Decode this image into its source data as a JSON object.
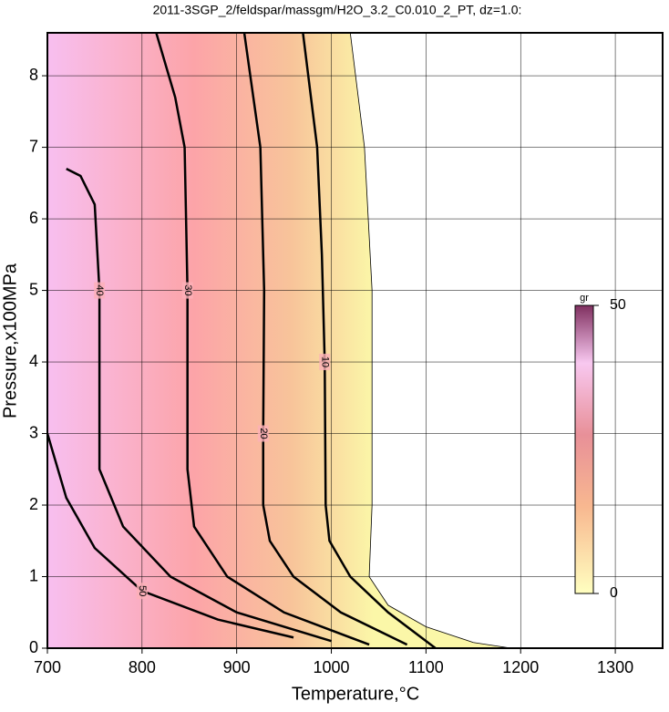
{
  "chart_data": {
    "type": "contour",
    "title": "2011-3SGP_2/feldspar/massgm/H2O_3.2_C0.010_2_PT, dz=1.0:",
    "x_label": "Temperature,°C",
    "y_label": "Pressure,x100MPa",
    "xlim": [
      700,
      1350
    ],
    "ylim": [
      0,
      8.6
    ],
    "xticks": [
      700,
      800,
      900,
      1000,
      1100,
      1200,
      1300
    ],
    "yticks": [
      0,
      1,
      2,
      3,
      4,
      5,
      6,
      7,
      8
    ],
    "grid": true,
    "colorbar": {
      "label": "gr",
      "lim": [
        0,
        50
      ],
      "ticks": [
        0,
        50
      ]
    },
    "boundary": {
      "x": [
        1020,
        1035,
        1043,
        1043,
        1040,
        1060,
        1100,
        1150,
        1190
      ],
      "y": [
        8.6,
        7,
        5,
        2,
        1,
        0.6,
        0.3,
        0.08,
        0
      ]
    },
    "contours": [
      {
        "level": 10,
        "x": [
          970,
          985,
          990,
          993,
          994,
          998,
          1020,
          1060,
          1110
        ],
        "y": [
          8.6,
          7,
          5.5,
          4,
          2,
          1.5,
          1,
          0.5,
          0
        ]
      },
      {
        "level": 20,
        "x": [
          908,
          925,
          929,
          928,
          928,
          935,
          960,
          1010,
          1080
        ],
        "y": [
          8.6,
          7,
          5,
          3,
          2,
          1.5,
          1,
          0.5,
          0.05
        ]
      },
      {
        "level": 30,
        "x": [
          815,
          835,
          845,
          848,
          848,
          855,
          890,
          950,
          1040
        ],
        "y": [
          8.6,
          7.7,
          7,
          5,
          2.5,
          1.7,
          1,
          0.5,
          0.05
        ]
      },
      {
        "level": 40,
        "x": [
          720,
          735,
          750,
          755,
          755,
          755,
          780,
          830,
          900,
          1000
        ],
        "y": [
          6.7,
          6.6,
          6.2,
          5,
          3,
          2.5,
          1.7,
          1,
          0.5,
          0.1
        ]
      },
      {
        "level": 50,
        "x": [
          700,
          720,
          750,
          800,
          880,
          960
        ],
        "y": [
          3,
          2.1,
          1.4,
          0.8,
          0.4,
          0.15
        ]
      }
    ]
  }
}
